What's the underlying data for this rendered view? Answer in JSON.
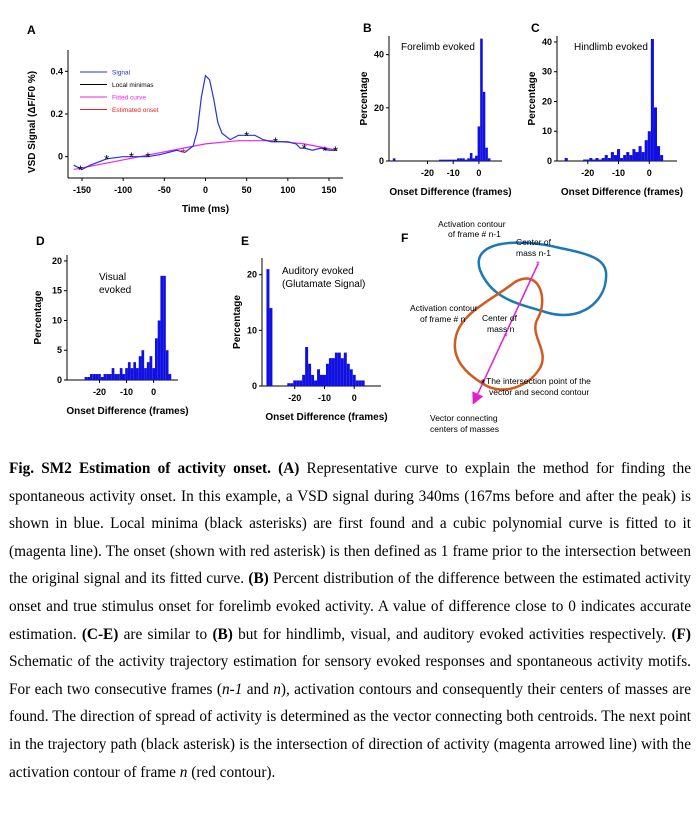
{
  "figure": {
    "panel_labels": {
      "A": "A",
      "B": "B",
      "C": "C",
      "D": "D",
      "E": "E",
      "F": "F"
    },
    "schematic_f": {
      "label_contour_prev_1": "Activation contour",
      "label_contour_prev_2": "of frame # n-1",
      "label_center_prev_1": "Center of",
      "label_center_prev_2": "mass n-1",
      "label_contour_cur_1": "Activation contour",
      "label_contour_cur_2": "of frame # n",
      "label_center_cur_1": "Center of",
      "label_center_cur_2": "mass n",
      "label_intersection_1": "The intersection point of the",
      "label_intersection_2": "vector and second contour",
      "label_vector_1": "Vector connecting",
      "label_vector_2": "centers of masses",
      "colors": {
        "contour_prev": "#1a7ab8",
        "contour_cur": "#d05a20",
        "vector": "#e020d0"
      }
    }
  },
  "chart_data": [
    {
      "panel": "A",
      "type": "line",
      "xlabel": "Time (ms)",
      "ylabel": "VSD Signal (ΔF/F0 %)",
      "xlim": [
        -167,
        167
      ],
      "ylim": [
        -0.1,
        0.5
      ],
      "xticks": [
        "-150",
        "-100",
        "-50",
        "0",
        "50",
        "100",
        "150"
      ],
      "yticks": [
        "0",
        "0.2",
        "0.4"
      ],
      "legend": [
        "Signal",
        "Local minimas",
        "Fitted curve",
        "Estimated onset"
      ],
      "legend_position": "top-left",
      "series": [
        {
          "name": "Signal",
          "color": "#2233dd",
          "x": [
            -160,
            -150,
            -140,
            -120,
            -100,
            -85,
            -70,
            -55,
            -45,
            -35,
            -25,
            -15,
            -10,
            -5,
            0,
            5,
            10,
            15,
            20,
            30,
            40,
            50,
            60,
            70,
            80,
            90,
            100,
            110,
            115,
            120,
            130,
            140,
            150,
            160
          ],
          "y": [
            -0.04,
            -0.06,
            -0.04,
            -0.01,
            0.0,
            0.0,
            0.0,
            0.01,
            0.02,
            0.03,
            0.02,
            0.05,
            0.12,
            0.28,
            0.38,
            0.36,
            0.27,
            0.16,
            0.11,
            0.08,
            0.1,
            0.1,
            0.1,
            0.08,
            0.07,
            0.07,
            0.07,
            0.06,
            0.04,
            0.04,
            0.03,
            0.04,
            0.03,
            0.03
          ]
        },
        {
          "name": "Fitted curve",
          "color": "#ee22ee",
          "x": [
            -160,
            -120,
            -80,
            -40,
            0,
            40,
            80,
            120,
            160
          ],
          "y": [
            -0.06,
            -0.03,
            0.0,
            0.03,
            0.06,
            0.075,
            0.075,
            0.06,
            0.03
          ]
        },
        {
          "name": "Local minimas",
          "color": "#000000",
          "x": [
            -152,
            -120,
            -90,
            -70,
            50,
            85,
            120,
            145,
            158
          ],
          "y": [
            -0.06,
            -0.01,
            0.0,
            0.0,
            0.1,
            0.07,
            0.04,
            0.03,
            0.03
          ]
        },
        {
          "name": "Estimated onset",
          "color": "#ee2222",
          "x": [
            -27
          ],
          "y": [
            0.02
          ]
        }
      ]
    },
    {
      "panel": "B",
      "type": "bar",
      "title": "Forelimb evoked",
      "xlabel": "Onset Difference (frames)",
      "ylabel": "Percentage",
      "xlim": [
        -35,
        9
      ],
      "ylim": [
        0,
        47
      ],
      "xticks": [
        "-20",
        "-10",
        "0"
      ],
      "yticks": [
        "0",
        "20",
        "40"
      ],
      "x": [
        -33,
        -15,
        -14,
        -13,
        -12,
        -11,
        -10,
        -9,
        -8,
        -7,
        -6,
        -5,
        -4,
        -3,
        -2,
        -1,
        0,
        1,
        2,
        3,
        4
      ],
      "values": [
        1,
        0.5,
        0.5,
        0.5,
        0.5,
        0.5,
        0.5,
        0.5,
        1,
        1,
        1,
        0.5,
        1,
        3,
        1,
        2,
        13,
        46,
        26,
        5,
        1
      ]
    },
    {
      "panel": "C",
      "type": "bar",
      "title": "Hindlimb evoked",
      "xlabel": "Onset Difference (frames)",
      "ylabel": "Percentage",
      "xlim": [
        -30,
        9
      ],
      "ylim": [
        0,
        42
      ],
      "xticks": [
        "-20",
        "-10",
        "0"
      ],
      "yticks": [
        "0",
        "10",
        "20",
        "30",
        "40"
      ],
      "x": [
        -27,
        -21,
        -20,
        -19,
        -18,
        -17,
        -16,
        -15,
        -14,
        -13,
        -12,
        -11,
        -10,
        -9,
        -8,
        -7,
        -6,
        -5,
        -4,
        -3,
        -2,
        -1,
        0,
        1,
        2,
        3,
        4
      ],
      "values": [
        1,
        0.5,
        0.5,
        1,
        0.5,
        1,
        0.5,
        1,
        2,
        1,
        3,
        2,
        4,
        1,
        2,
        3,
        2,
        4,
        3,
        5,
        3,
        7,
        10,
        41,
        18,
        5,
        2
      ]
    },
    {
      "panel": "D",
      "type": "bar",
      "title": "Visual evoked",
      "xlabel": "Onset Difference (frames)",
      "ylabel": "Percentage",
      "xlim": [
        -32,
        9
      ],
      "ylim": [
        0,
        21
      ],
      "xticks": [
        "-20",
        "-10",
        "0"
      ],
      "yticks": [
        "0",
        "5",
        "10",
        "15",
        "20"
      ],
      "x": [
        -25,
        -24,
        -23,
        -22,
        -21,
        -20,
        -19,
        -18,
        -17,
        -16,
        -15,
        -14,
        -13,
        -12,
        -11,
        -10,
        -9,
        -8,
        -7,
        -6,
        -5,
        -4,
        -3,
        -2,
        -1,
        0,
        1,
        2,
        3,
        4,
        5,
        6
      ],
      "values": [
        0.5,
        0.5,
        1,
        1,
        1,
        1,
        0.5,
        1,
        1,
        1,
        2,
        1,
        1,
        2,
        1,
        2,
        3,
        2,
        3,
        2,
        4,
        5,
        2,
        3,
        4,
        2,
        7,
        10,
        17.5,
        17.5,
        5,
        1
      ]
    },
    {
      "panel": "E",
      "type": "bar",
      "title": "Auditory evoked (Glutamate Signal)",
      "xlabel": "Onset Difference (frames)",
      "ylabel": "Percentage",
      "xlim": [
        -31,
        9
      ],
      "ylim": [
        0,
        23
      ],
      "xticks": [
        "-20",
        "-10",
        "0"
      ],
      "yticks": [
        "0",
        "10",
        "20"
      ],
      "x": [
        -29,
        -28,
        -22,
        -21,
        -20,
        -19,
        -18,
        -17,
        -16,
        -15,
        -14,
        -13,
        -12,
        -11,
        -10,
        -9,
        -8,
        -7,
        -6,
        -5,
        -4,
        -3,
        -2,
        -1,
        0,
        1,
        2,
        3
      ],
      "values": [
        21,
        14,
        0.5,
        0.5,
        1,
        1,
        1,
        2,
        7,
        4,
        2,
        1,
        3,
        2,
        2,
        4,
        5,
        5,
        6,
        6,
        5,
        6,
        4,
        3,
        2,
        1,
        1,
        1
      ]
    }
  ],
  "caption": {
    "title": "Fig. SM2 Estimation of activity onset.",
    "t1": " ",
    "ref_A": "(A)",
    "t2": " Representative curve to explain the method for finding the spontaneous activity onset. In this example, a VSD signal during 340ms (167ms before and after the peak) is shown in blue. Local minima (black asterisks) are first found and a cubic polynomial curve is fitted to it (magenta line). The onset (shown with red asterisk) is then defined as 1 frame prior to the intersection between the original signal and its fitted curve. ",
    "ref_B": "(B)",
    "t3": " Percent distribution of the difference between the estimated activity onset and true stimulus onset for forelimb evoked activity. A value of difference close to 0 indicates accurate estimation. ",
    "ref_CE": "(C-E)",
    "t4": " are similar to ",
    "ref_B2": "(B)",
    "t5": " but for hindlimb, visual, and auditory evoked activities respectively. ",
    "ref_F": "(F)",
    "t6": " Schematic of the activity trajectory estimation for sensory evoked responses and spontaneous activity motifs. For each two consecutive frames (",
    "i1": "n-1",
    "t7": " and ",
    "i2": "n",
    "t8": "), activation contours and consequently their centers of masses are found. The direction of spread of activity is determined as the vector connecting both centroids. The next point in the trajectory path (black asterisk) is the intersection of direction of activity (magenta arrowed line) with the activation contour of frame ",
    "i3": "n",
    "t9": " (red contour)."
  }
}
